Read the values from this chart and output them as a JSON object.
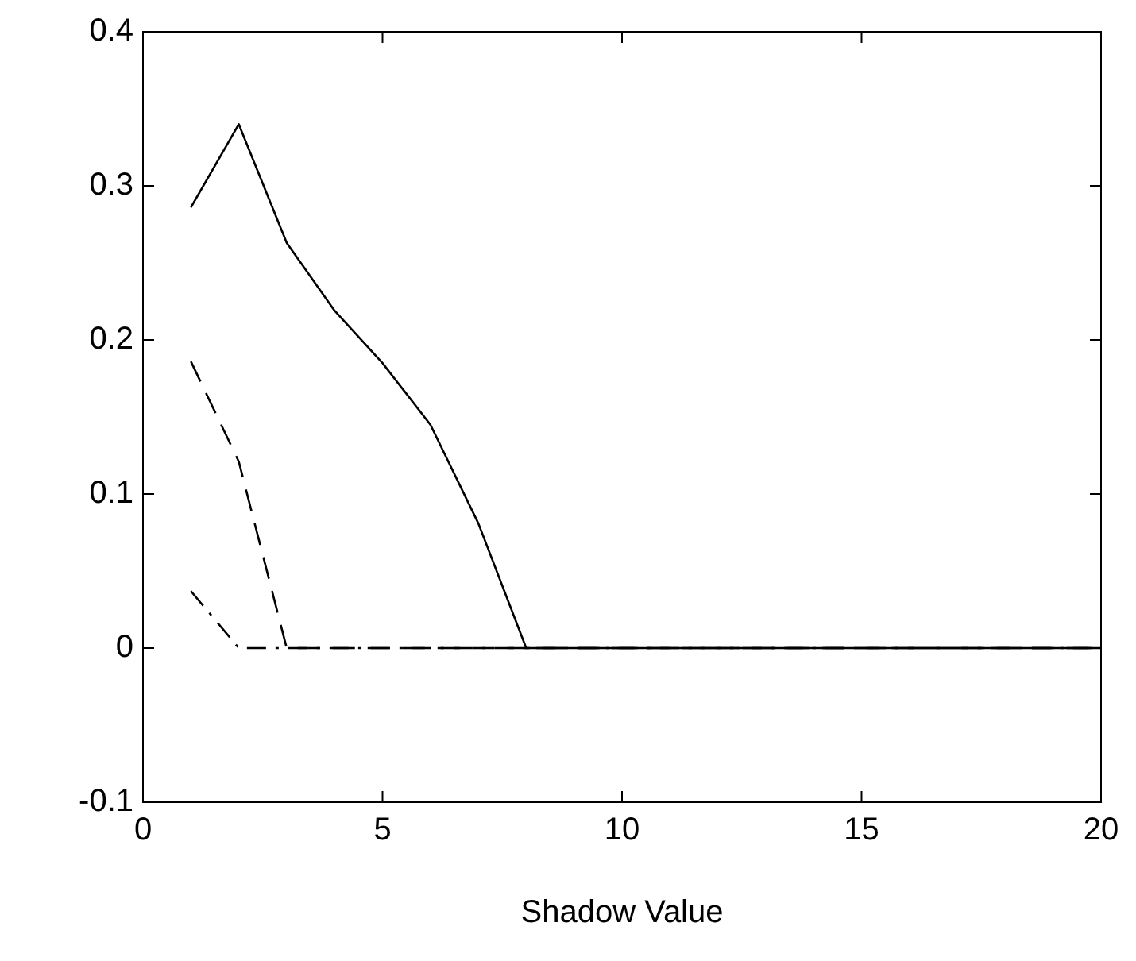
{
  "chart_data": {
    "type": "line",
    "xlabel": "Shadow Value",
    "x": [
      1,
      2,
      3,
      4,
      5,
      6,
      7,
      8,
      9,
      10,
      11,
      12,
      13,
      14,
      15,
      16,
      17,
      18,
      19,
      20
    ],
    "series": [
      {
        "color": "#000000",
        "line_style": "solid",
        "values": [
          0.286,
          0.34,
          0.263,
          0.219,
          0.185,
          0.145,
          0.081,
          0,
          0,
          0,
          0,
          0,
          0,
          0,
          0,
          0,
          0,
          0,
          0,
          0
        ]
      },
      {
        "color": "#000000",
        "line_style": "dashed",
        "values": [
          0.186,
          0.121,
          0,
          0,
          0,
          0,
          0,
          0,
          0,
          0,
          0,
          0,
          0,
          0,
          0,
          0,
          0,
          0,
          0,
          0
        ]
      },
      {
        "color": "#000000",
        "line_style": "dashdot",
        "values": [
          0.037,
          0,
          0,
          0,
          0,
          0,
          0,
          0,
          0,
          0,
          0,
          0,
          0,
          0,
          0,
          0,
          0,
          0,
          0,
          0
        ]
      }
    ],
    "xlim": [
      0,
      20
    ],
    "xticks": [
      0,
      5,
      10,
      15,
      20
    ],
    "ylim": [
      -0.1,
      0.4
    ],
    "yticks": [
      -0.1,
      0,
      0.1,
      0.2,
      0.3,
      0.4
    ],
    "grid": false,
    "legend": false,
    "marker": "none"
  }
}
